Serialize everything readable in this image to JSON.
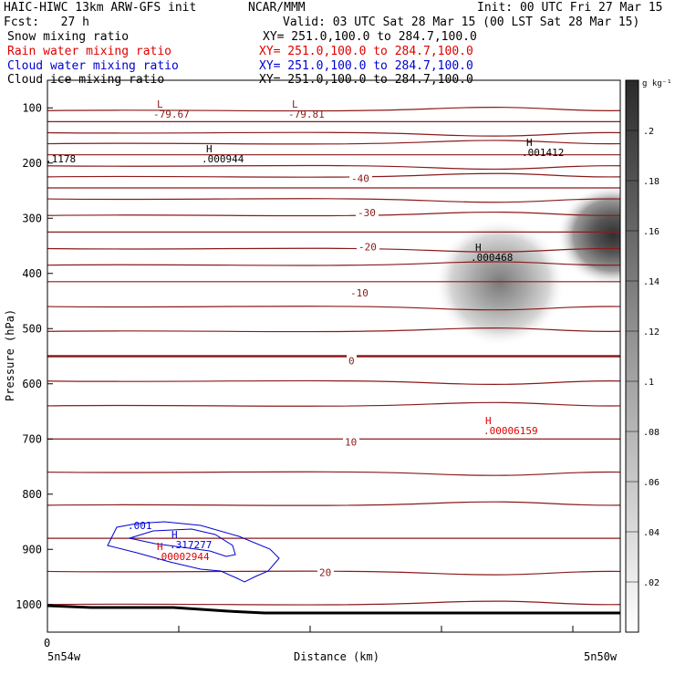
{
  "header": {
    "title_left": "HAIC-HIWC 13km ARW-GFS init",
    "org": "NCAR/MMM",
    "init": "Init: 00 UTC Fri 27 Mar 15",
    "fcst": "Fcst:   27 h",
    "valid": "Valid: 03 UTC Sat 28 Mar 15 (00 LST Sat 28 Mar 15)",
    "fields": [
      {
        "name": "Snow mixing ratio",
        "xy": "XY= 251.0,100.0 to 284.7,100.0",
        "color": "#000000"
      },
      {
        "name": "Rain water mixing ratio",
        "xy": "XY= 251.0,100.0 to 284.7,100.0",
        "color": "#e00000"
      },
      {
        "name": "Cloud water mixing ratio",
        "xy": "XY= 251.0,100.0 to 284.7,100.0",
        "color": "#0000d0"
      },
      {
        "name": "Cloud ice mixing ratio",
        "xy": "XY= 251.0,100.0 to 284.7,100.0",
        "color": "#000000"
      }
    ]
  },
  "chart_data": {
    "type": "contour-cross-section",
    "xlabel": "Distance (km)",
    "ylabel": "Pressure (hPa)",
    "x_left_label": "5n54w",
    "x_right_label": "5n50w",
    "x_zero_label": "0",
    "ylim": [
      1050,
      50
    ],
    "y_ticks": [
      100,
      200,
      300,
      400,
      500,
      600,
      700,
      800,
      900,
      1000
    ],
    "colorbar": {
      "unit": "g kg⁻¹",
      "ticks": [
        ".2",
        ".18",
        ".16",
        ".14",
        ".12",
        ".1",
        ".08",
        ".06",
        ".04",
        ".02"
      ],
      "tick_values": [
        0.2,
        0.18,
        0.16,
        0.14,
        0.12,
        0.1,
        0.08,
        0.06,
        0.04,
        0.02
      ],
      "range": [
        0,
        0.22
      ]
    },
    "temperature_contour_labels": [
      {
        "text": "-40",
        "pressure": 228
      },
      {
        "text": "-30",
        "pressure": 290
      },
      {
        "text": "-20",
        "pressure": 352
      },
      {
        "text": "-10",
        "pressure": 435
      },
      {
        "text": "0",
        "pressure": 558
      },
      {
        "text": "10",
        "pressure": 705
      },
      {
        "text": "20",
        "pressure": 942
      }
    ],
    "extrema_labels": [
      {
        "marker": "L",
        "value": "-79.67",
        "color": "#8b1a1a"
      },
      {
        "marker": "L",
        "value": "-79.81",
        "color": "#8b1a1a"
      },
      {
        "marker": "H",
        "value": ".000944",
        "color": "#000000"
      },
      {
        "marker": "H",
        "value": ".001412",
        "color": "#000000"
      },
      {
        "marker": "",
        "value": ".1178",
        "color": "#000000"
      },
      {
        "marker": "H",
        "value": ".000468",
        "color": "#000000"
      },
      {
        "marker": "H",
        "value": ".00006159",
        "color": "#e00000"
      },
      {
        "marker": "H",
        "value": ".317277",
        "color": "#0000d0"
      },
      {
        "marker": "H",
        "value": ".00002944",
        "color": "#e00000"
      },
      {
        "marker": "",
        "value": ".001",
        "color": "#0000d0"
      }
    ],
    "colors": {
      "temperature_contour": "#8b1a1a",
      "ground": "#000000",
      "shading": "#404040"
    }
  }
}
